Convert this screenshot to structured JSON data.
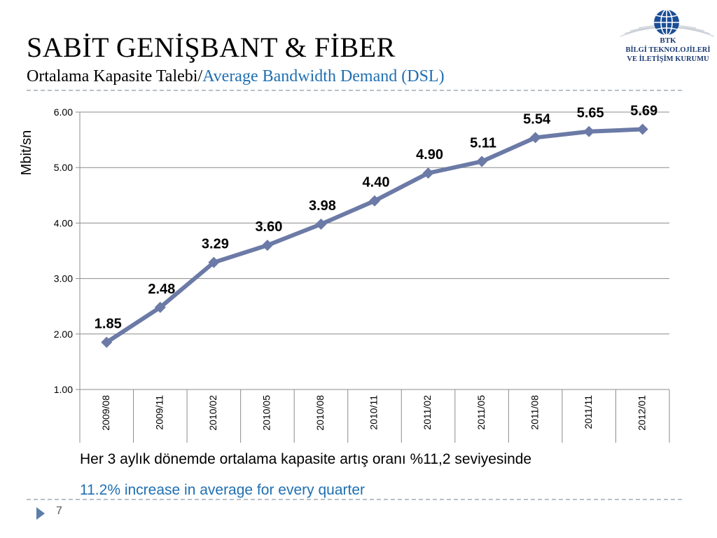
{
  "header": {
    "title": "SABİT GENİŞBANT & FİBER",
    "subtitle_tr": "Ortalama Kapasite Talebi/",
    "subtitle_en": "Average Bandwidth Demand (DSL)"
  },
  "logo": {
    "abbr": "BTK",
    "line1": "BİLGİ TEKNOLOJİLERİ",
    "line2": "VE İLETİŞİM KURUMU"
  },
  "chart_data": {
    "type": "line",
    "ylabel": "Mbit/sn",
    "xlabel": "",
    "categories": [
      "2009/08",
      "2009/11",
      "2010/02",
      "2010/05",
      "2010/08",
      "2010/11",
      "2011/02",
      "2011/05",
      "2011/08",
      "2011/11",
      "2012/01"
    ],
    "values": [
      1.85,
      2.48,
      3.29,
      3.6,
      3.98,
      4.4,
      4.9,
      5.11,
      5.54,
      5.65,
      5.69
    ],
    "data_labels": [
      "1.85",
      "2.48",
      "3.29",
      "3.60",
      "3.98",
      "4.40",
      "4.90",
      "5.11",
      "5.54",
      "5.65",
      "5.69"
    ],
    "ylim": [
      1.0,
      6.0
    ],
    "yticks": [
      1.0,
      2.0,
      3.0,
      4.0,
      5.0,
      6.0
    ],
    "ytick_labels": [
      "1.00",
      "2.00",
      "3.00",
      "4.00",
      "5.00",
      "6.00"
    ],
    "grid": true,
    "line_color": "#6b7aa6"
  },
  "notes": {
    "tr": "Her 3 aylık dönemde ortalama kapasite artış oranı %11,2 seviyesinde",
    "en": "11.2% increase in average for every quarter"
  },
  "footer": {
    "page_number": "7"
  }
}
